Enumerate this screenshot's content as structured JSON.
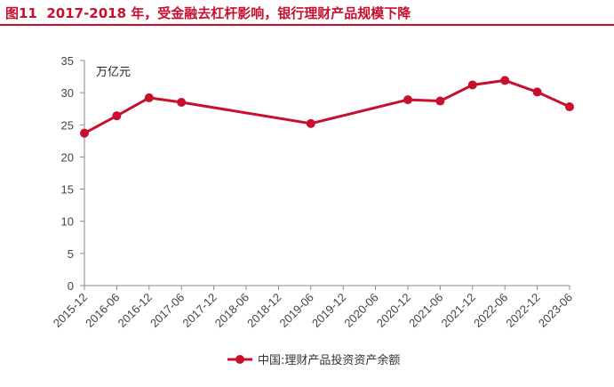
{
  "figure": {
    "label": "图11",
    "title": "2017-2018 年，受金融去杠杆影响，银行理财产品规模下降",
    "accent_color": "#c8102e"
  },
  "chart_data": {
    "type": "line",
    "unit_label": "万亿元",
    "x_ticks": [
      "2015-12",
      "2016-06",
      "2016-12",
      "2017-06",
      "2017-12",
      "2018-06",
      "2018-12",
      "2019-06",
      "2019-12",
      "2020-06",
      "2020-12",
      "2021-06",
      "2021-12",
      "2022-06",
      "2022-12",
      "2023-06"
    ],
    "y_ticks": [
      0,
      5,
      10,
      15,
      20,
      25,
      30,
      35
    ],
    "ylim": [
      0,
      35
    ],
    "grid": false,
    "legend_position": "bottom-center",
    "series": [
      {
        "name": "中国:理财产品投资资产余额",
        "color": "#c8102e",
        "points": [
          {
            "x": "2015-12",
            "y": 23.7
          },
          {
            "x": "2016-06",
            "y": 26.4
          },
          {
            "x": "2016-12",
            "y": 29.2
          },
          {
            "x": "2017-06",
            "y": 28.5
          },
          {
            "x": "2019-06",
            "y": 25.2
          },
          {
            "x": "2020-12",
            "y": 28.9
          },
          {
            "x": "2021-06",
            "y": 28.7
          },
          {
            "x": "2021-12",
            "y": 31.2
          },
          {
            "x": "2022-06",
            "y": 31.9
          },
          {
            "x": "2022-12",
            "y": 30.1
          },
          {
            "x": "2023-06",
            "y": 27.8
          }
        ]
      }
    ]
  }
}
